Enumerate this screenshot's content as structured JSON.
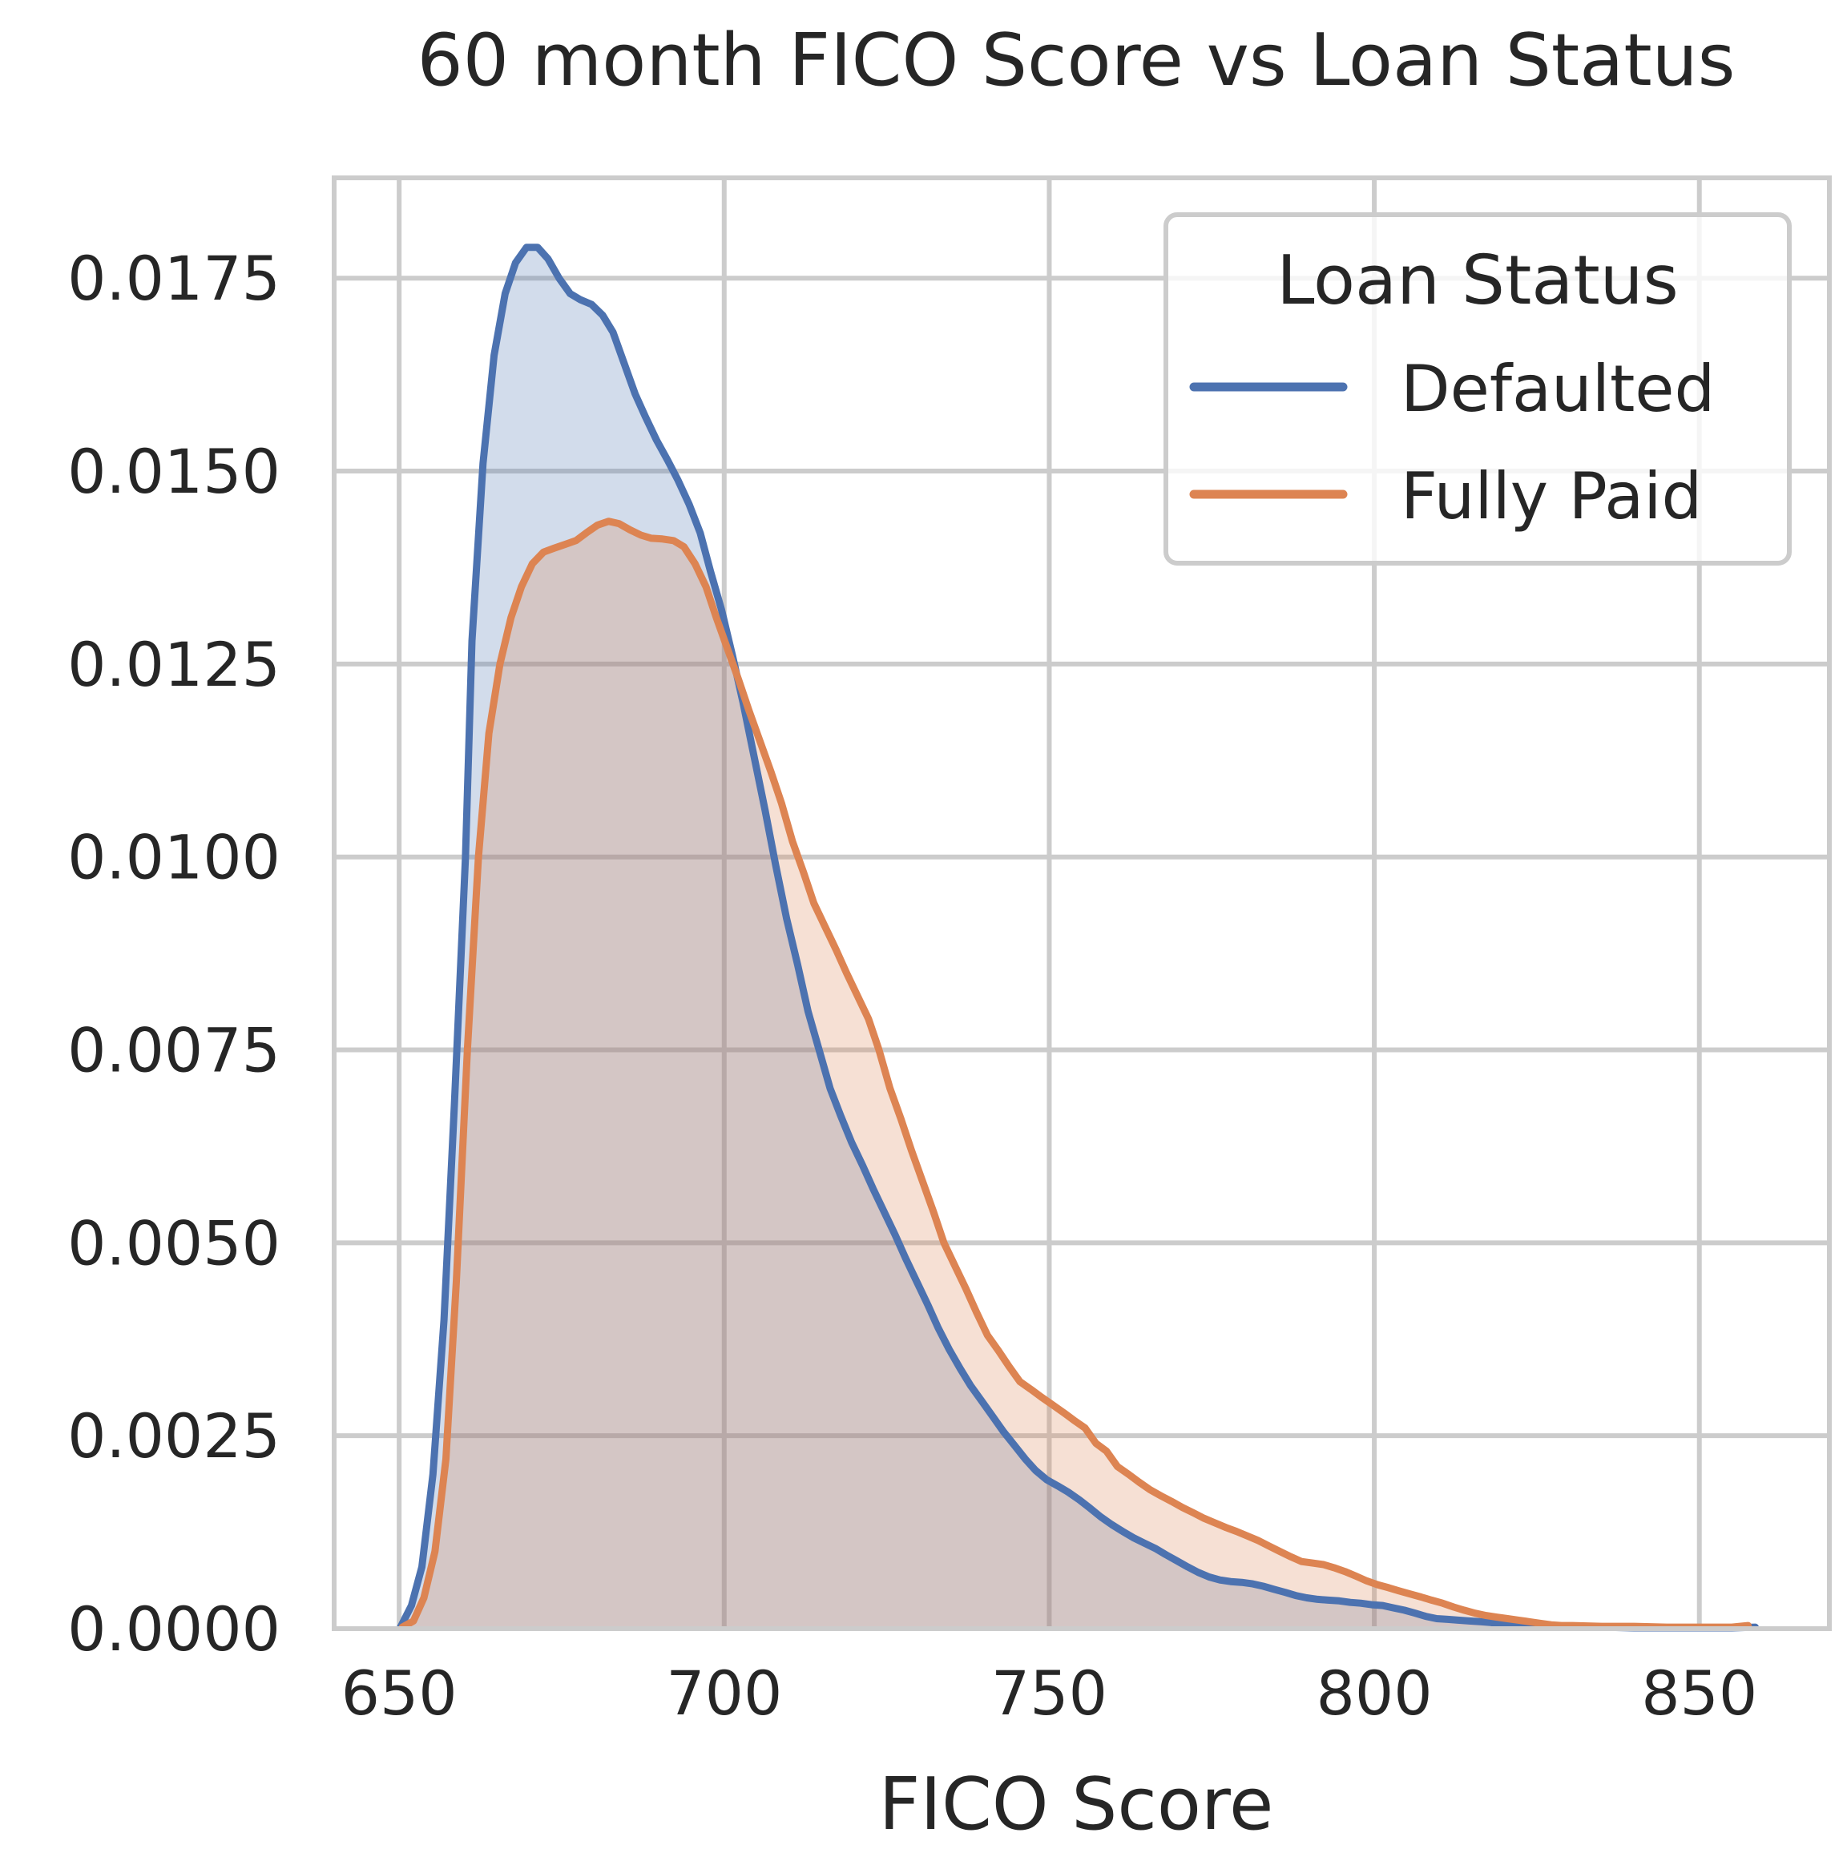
{
  "chart_data": {
    "type": "area",
    "title": "60 month FICO Score vs Loan Status",
    "xlabel": "FICO Score",
    "ylabel": "",
    "xlim": [
      640,
      870
    ],
    "ylim": [
      0,
      0.0188
    ],
    "xticks": [
      650,
      700,
      750,
      800,
      850
    ],
    "xtick_labels": [
      "650",
      "700",
      "750",
      "800",
      "850"
    ],
    "yticks": [
      0,
      0.0025,
      0.005,
      0.0075,
      0.01,
      0.0125,
      0.015,
      0.0175
    ],
    "ytick_labels": [
      "0.0000",
      "0.0025",
      "0.0050",
      "0.0075",
      "0.0100",
      "0.0125",
      "0.0150",
      "0.0175"
    ],
    "grid": true,
    "legend": {
      "title": "Loan Status",
      "position": "top-right"
    },
    "series": [
      {
        "name": "Defaulted",
        "color": "#4c72b0",
        "points": [
          [
            650.2,
            2e-05
          ],
          [
            651.9,
            0.0003
          ],
          [
            653.5,
            0.0008
          ],
          [
            655.2,
            0.002
          ],
          [
            656.9,
            0.004
          ],
          [
            658.5,
            0.0068
          ],
          [
            660.2,
            0.01
          ],
          [
            661.2,
            0.0128
          ],
          [
            662.9,
            0.0151
          ],
          [
            664.6,
            0.0165
          ],
          [
            666.3,
            0.0173
          ],
          [
            667.9,
            0.0177
          ],
          [
            669.6,
            0.0179
          ],
          [
            671.3,
            0.0179
          ],
          [
            672.9,
            0.01775
          ],
          [
            674.6,
            0.0175
          ],
          [
            676.3,
            0.0173
          ],
          [
            677.9,
            0.01722
          ],
          [
            679.6,
            0.01716
          ],
          [
            681.3,
            0.01702
          ],
          [
            682.9,
            0.0168
          ],
          [
            684.6,
            0.0164
          ],
          [
            686.3,
            0.016
          ],
          [
            687.9,
            0.0157
          ],
          [
            689.6,
            0.0154
          ],
          [
            691.3,
            0.01514
          ],
          [
            692.9,
            0.01488
          ],
          [
            694.6,
            0.01457
          ],
          [
            696.3,
            0.0142
          ],
          [
            697.9,
            0.0137
          ],
          [
            699.6,
            0.0132
          ],
          [
            701.3,
            0.0126
          ],
          [
            702.9,
            0.012
          ],
          [
            704.6,
            0.0113
          ],
          [
            706.3,
            0.0106
          ],
          [
            707.9,
            0.0099
          ],
          [
            709.6,
            0.0092
          ],
          [
            711.3,
            0.0086
          ],
          [
            712.9,
            0.008
          ],
          [
            714.6,
            0.0075
          ],
          [
            716.3,
            0.007
          ],
          [
            717.9,
            0.00665
          ],
          [
            719.6,
            0.0063
          ],
          [
            721.3,
            0.006
          ],
          [
            722.9,
            0.0057
          ],
          [
            724.6,
            0.0054
          ],
          [
            726.3,
            0.0051
          ],
          [
            727.9,
            0.0048
          ],
          [
            729.6,
            0.0045
          ],
          [
            731.3,
            0.0042
          ],
          [
            732.9,
            0.0039
          ],
          [
            734.6,
            0.00362
          ],
          [
            736.3,
            0.00337
          ],
          [
            737.9,
            0.00315
          ],
          [
            739.6,
            0.00295
          ],
          [
            741.3,
            0.00275
          ],
          [
            742.9,
            0.00256
          ],
          [
            744.6,
            0.00238
          ],
          [
            746.3,
            0.0022
          ],
          [
            747.9,
            0.00205
          ],
          [
            749.6,
            0.00193
          ],
          [
            751.3,
            0.00185
          ],
          [
            752.9,
            0.00177
          ],
          [
            754.6,
            0.00167
          ],
          [
            756.3,
            0.00156
          ],
          [
            757.9,
            0.00145
          ],
          [
            759.6,
            0.00135
          ],
          [
            761.3,
            0.00126
          ],
          [
            762.9,
            0.00118
          ],
          [
            764.6,
            0.00111
          ],
          [
            766.3,
            0.00104
          ],
          [
            767.9,
            0.00096
          ],
          [
            769.6,
            0.00088
          ],
          [
            771.3,
            0.0008
          ],
          [
            772.9,
            0.00073
          ],
          [
            774.6,
            0.00067
          ],
          [
            776.3,
            0.00063
          ],
          [
            777.9,
            0.00061
          ],
          [
            779.6,
            0.0006
          ],
          [
            781.3,
            0.00058
          ],
          [
            782.9,
            0.00055
          ],
          [
            784.6,
            0.00051
          ],
          [
            786.3,
            0.00047
          ],
          [
            787.9,
            0.00043
          ],
          [
            789.6,
            0.0004
          ],
          [
            791.3,
            0.00038
          ],
          [
            792.9,
            0.00037
          ],
          [
            794.6,
            0.00036
          ],
          [
            796.3,
            0.00034
          ],
          [
            797.9,
            0.00033
          ],
          [
            799.6,
            0.00031
          ],
          [
            801.3,
            0.0003
          ],
          [
            802.9,
            0.00027
          ],
          [
            804.6,
            0.00024
          ],
          [
            806.3,
            0.0002
          ],
          [
            807.9,
            0.00016
          ],
          [
            809.6,
            0.00013
          ],
          [
            811.3,
            0.00012
          ],
          [
            812.9,
            0.00011
          ],
          [
            814.6,
            0.0001
          ],
          [
            816.3,
            9e-05
          ],
          [
            817.9,
            8e-05
          ],
          [
            819.6,
            6e-05
          ],
          [
            821.3,
            4e-05
          ],
          [
            822.9,
            3e-05
          ],
          [
            824.6,
            2e-05
          ],
          [
            826.3,
            2e-05
          ],
          [
            830,
            2e-05
          ],
          [
            835,
            2e-05
          ],
          [
            840,
            1e-05
          ],
          [
            845,
            1e-05
          ],
          [
            850,
            1e-05
          ],
          [
            855,
            1e-05
          ],
          [
            858.6,
            2e-05
          ]
        ]
      },
      {
        "name": "Fully Paid",
        "color": "#dd8452",
        "points": [
          [
            650.5,
            2e-05
          ],
          [
            652.2,
            0.0001
          ],
          [
            653.8,
            0.0004
          ],
          [
            655.5,
            0.001
          ],
          [
            657.2,
            0.0022
          ],
          [
            658.8,
            0.0045
          ],
          [
            660.5,
            0.0075
          ],
          [
            662.2,
            0.01
          ],
          [
            663.8,
            0.0116
          ],
          [
            665.5,
            0.0125
          ],
          [
            667.2,
            0.0131
          ],
          [
            668.8,
            0.0135
          ],
          [
            670.5,
            0.0138
          ],
          [
            672.2,
            0.01395
          ],
          [
            673.8,
            0.014
          ],
          [
            675.5,
            0.01405
          ],
          [
            677.2,
            0.0141
          ],
          [
            678.8,
            0.0142
          ],
          [
            680.5,
            0.0143
          ],
          [
            682.2,
            0.01435
          ],
          [
            683.8,
            0.01432
          ],
          [
            685.5,
            0.01424
          ],
          [
            687.2,
            0.01417
          ],
          [
            688.8,
            0.01413
          ],
          [
            690.5,
            0.01412
          ],
          [
            692.2,
            0.0141
          ],
          [
            693.8,
            0.01402
          ],
          [
            695.5,
            0.0138
          ],
          [
            697.2,
            0.0135
          ],
          [
            698.8,
            0.0131
          ],
          [
            700.5,
            0.0127
          ],
          [
            702.2,
            0.0123
          ],
          [
            703.8,
            0.0119
          ],
          [
            705.5,
            0.0115
          ],
          [
            707.2,
            0.0111
          ],
          [
            708.8,
            0.0107
          ],
          [
            710.5,
            0.0102
          ],
          [
            712.2,
            0.0098
          ],
          [
            713.8,
            0.0094
          ],
          [
            715.5,
            0.0091
          ],
          [
            717.2,
            0.0088
          ],
          [
            718.8,
            0.0085
          ],
          [
            720.5,
            0.0082
          ],
          [
            722.2,
            0.0079
          ],
          [
            723.8,
            0.0075
          ],
          [
            725.5,
            0.007
          ],
          [
            727.2,
            0.0066
          ],
          [
            728.8,
            0.0062
          ],
          [
            730.5,
            0.0058
          ],
          [
            732.2,
            0.0054
          ],
          [
            733.8,
            0.005
          ],
          [
            735.5,
            0.0047
          ],
          [
            737.2,
            0.0044
          ],
          [
            738.8,
            0.0041
          ],
          [
            740.5,
            0.0038
          ],
          [
            742.2,
            0.0036
          ],
          [
            743.8,
            0.0034
          ],
          [
            745.5,
            0.0032
          ],
          [
            747.2,
            0.0031
          ],
          [
            748.8,
            0.003
          ],
          [
            750.5,
            0.0029
          ],
          [
            752.2,
            0.0028
          ],
          [
            753.8,
            0.0027
          ],
          [
            755.5,
            0.0026
          ],
          [
            757.2,
            0.0024
          ],
          [
            758.8,
            0.0023
          ],
          [
            760.5,
            0.0021
          ],
          [
            762.2,
            0.002
          ],
          [
            763.8,
            0.0019
          ],
          [
            765.5,
            0.0018
          ],
          [
            767.2,
            0.00172
          ],
          [
            768.8,
            0.00165
          ],
          [
            770.5,
            0.00157
          ],
          [
            772.2,
            0.0015
          ],
          [
            773.8,
            0.00143
          ],
          [
            775.5,
            0.00137
          ],
          [
            777.2,
            0.00131
          ],
          [
            778.8,
            0.00126
          ],
          [
            780.5,
            0.0012
          ],
          [
            782.2,
            0.00114
          ],
          [
            783.8,
            0.00107
          ],
          [
            785.5,
            0.001
          ],
          [
            787.2,
            0.00093
          ],
          [
            788.8,
            0.00087
          ],
          [
            790.5,
            0.00085
          ],
          [
            792.2,
            0.00083
          ],
          [
            793.8,
            0.00079
          ],
          [
            795.5,
            0.00074
          ],
          [
            797.2,
            0.00068
          ],
          [
            798.8,
            0.00062
          ],
          [
            800.5,
            0.00057
          ],
          [
            802.2,
            0.00053
          ],
          [
            803.8,
            0.00049
          ],
          [
            805.5,
            0.00045
          ],
          [
            807.2,
            0.00041
          ],
          [
            808.8,
            0.00037
          ],
          [
            810.5,
            0.00033
          ],
          [
            812.2,
            0.00028
          ],
          [
            813.8,
            0.00024
          ],
          [
            815.5,
            0.0002
          ],
          [
            817.2,
            0.00017
          ],
          [
            818.8,
            0.00015
          ],
          [
            820.5,
            0.00013
          ],
          [
            822.2,
            0.00011
          ],
          [
            823.8,
            9e-05
          ],
          [
            825.5,
            7e-05
          ],
          [
            827.2,
            5e-05
          ],
          [
            828.8,
            4e-05
          ],
          [
            830.5,
            4e-05
          ],
          [
            835,
            3e-05
          ],
          [
            840,
            3e-05
          ],
          [
            845,
            2e-05
          ],
          [
            850,
            2e-05
          ],
          [
            855,
            2e-05
          ],
          [
            857.5,
            4e-05
          ]
        ]
      }
    ]
  }
}
